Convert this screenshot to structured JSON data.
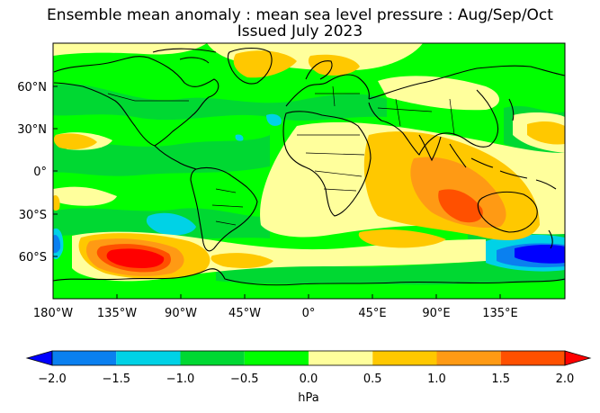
{
  "title_line1": "Ensemble mean anomaly : mean sea level pressure : Aug/Sep/Oct",
  "title_line2": "Issued July 2023",
  "lat_labels": [
    "60°N",
    "30°N",
    "0°",
    "30°S",
    "60°S"
  ],
  "lon_labels": [
    "180°W",
    "135°W",
    "90°W",
    "45°W",
    "0°",
    "45°E",
    "90°E",
    "135°E"
  ],
  "colorbar": {
    "ticks": [
      "−2.0",
      "−1.5",
      "−1.0",
      "−0.5",
      "0.0",
      "0.5",
      "1.0",
      "1.5",
      "2.0"
    ],
    "unit": "hPa",
    "colors": [
      "#0000ff",
      "#0a80f0",
      "#00d2e6",
      "#00d832",
      "#00ff00",
      "#ffff9c",
      "#ffc800",
      "#ff9a14",
      "#ff5000",
      "#ff0000"
    ]
  },
  "field_colors": {
    "lt_m2": "#0000ff",
    "m2_m15": "#0a80f0",
    "m15_m1": "#00d2e6",
    "m1_m05": "#00d832",
    "m05_0": "#00ff00",
    "p0_05": "#ffff9c",
    "p05_1": "#ffc800",
    "p1_15": "#ff9a14",
    "p15_2": "#ff5000",
    "gt_2": "#ff0000"
  }
}
